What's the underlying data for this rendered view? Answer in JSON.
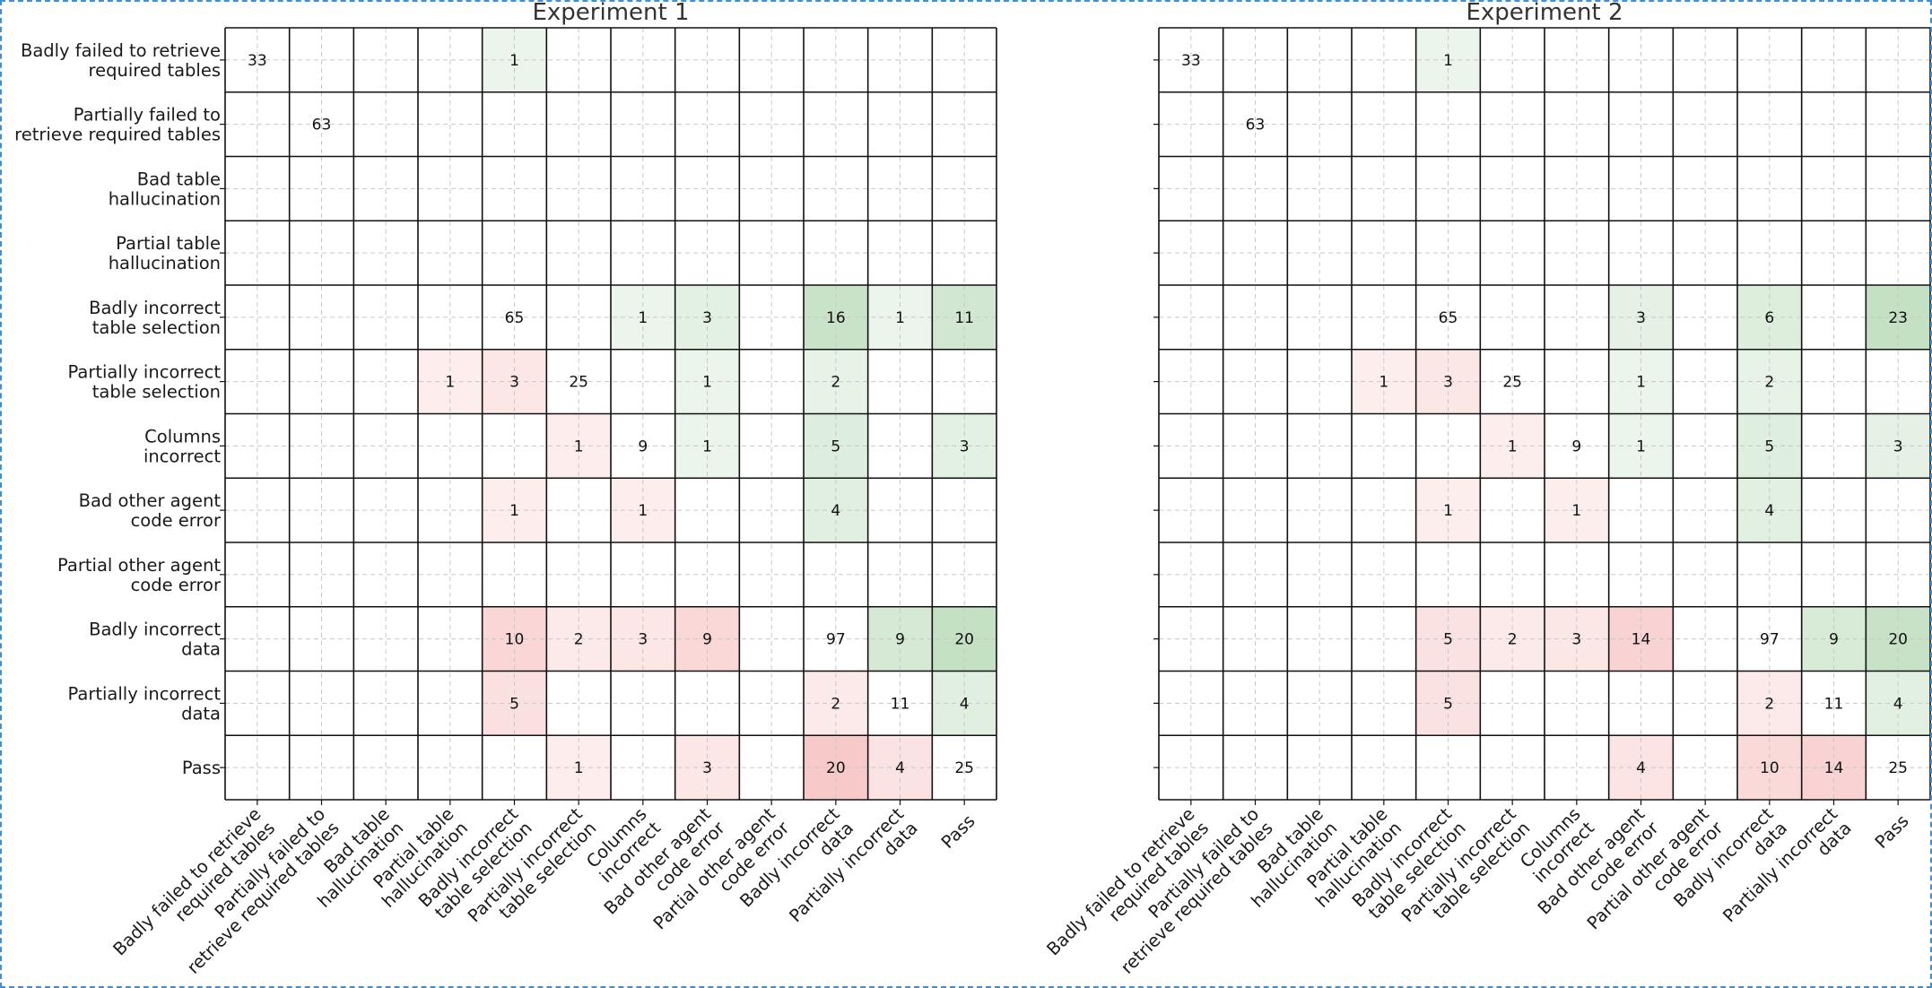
{
  "chart_data": [
    {
      "type": "heatmap",
      "title": "Experiment 1",
      "row_labels": [
        [
          "Badly failed to retrieve",
          "required tables"
        ],
        [
          "Partially failed to",
          "retrieve required tables"
        ],
        [
          "Bad table",
          "hallucination"
        ],
        [
          "Partial table",
          "hallucination"
        ],
        [
          "Badly incorrect",
          "table selection"
        ],
        [
          "Partially incorrect",
          "table selection"
        ],
        [
          "Columns",
          "incorrect"
        ],
        [
          "Bad other agent",
          "code error"
        ],
        [
          "Partial other agent",
          "code error"
        ],
        [
          "Badly incorrect",
          "data"
        ],
        [
          "Partially incorrect",
          "data"
        ],
        [
          "Pass"
        ]
      ],
      "col_labels": [
        [
          "Badly failed to retrieve",
          "required tables"
        ],
        [
          "Partially failed to",
          "retrieve required tables"
        ],
        [
          "Bad table",
          "hallucination"
        ],
        [
          "Partial table",
          "hallucination"
        ],
        [
          "Badly incorrect",
          "table selection"
        ],
        [
          "Partially incorrect",
          "table selection"
        ],
        [
          "Columns",
          "incorrect"
        ],
        [
          "Bad other agent",
          "code error"
        ],
        [
          "Partial other agent",
          "code error"
        ],
        [
          "Badly incorrect",
          "data"
        ],
        [
          "Partially incorrect",
          "data"
        ],
        [
          "Pass"
        ]
      ],
      "values": [
        [
          33,
          0,
          0,
          0,
          1,
          0,
          0,
          0,
          0,
          0,
          0,
          0
        ],
        [
          0,
          63,
          0,
          0,
          0,
          0,
          0,
          0,
          0,
          0,
          0,
          0
        ],
        [
          0,
          0,
          0,
          0,
          0,
          0,
          0,
          0,
          0,
          0,
          0,
          0
        ],
        [
          0,
          0,
          0,
          0,
          0,
          0,
          0,
          0,
          0,
          0,
          0,
          0
        ],
        [
          0,
          0,
          0,
          0,
          65,
          0,
          1,
          3,
          0,
          16,
          1,
          11
        ],
        [
          0,
          0,
          0,
          1,
          3,
          25,
          0,
          1,
          0,
          2,
          0,
          0
        ],
        [
          0,
          0,
          0,
          0,
          0,
          1,
          9,
          1,
          0,
          5,
          0,
          3
        ],
        [
          0,
          0,
          0,
          0,
          1,
          0,
          1,
          0,
          0,
          4,
          0,
          0
        ],
        [
          0,
          0,
          0,
          0,
          0,
          0,
          0,
          0,
          0,
          0,
          0,
          0
        ],
        [
          0,
          0,
          0,
          0,
          10,
          2,
          3,
          9,
          0,
          97,
          9,
          20
        ],
        [
          0,
          0,
          0,
          0,
          5,
          0,
          0,
          0,
          0,
          2,
          11,
          4
        ],
        [
          0,
          0,
          0,
          0,
          0,
          1,
          0,
          3,
          0,
          20,
          4,
          25
        ]
      ],
      "grid": true,
      "colors": {
        "above_diagonal": "#3a9a3a",
        "below_diagonal": "#e84a4a",
        "diagonal": "#ffffff"
      }
    },
    {
      "type": "heatmap",
      "title": "Experiment 2",
      "row_labels": [
        [
          "Badly failed to retrieve",
          "required tables"
        ],
        [
          "Partially failed to",
          "retrieve required tables"
        ],
        [
          "Bad table",
          "hallucination"
        ],
        [
          "Partial table",
          "hallucination"
        ],
        [
          "Badly incorrect",
          "table selection"
        ],
        [
          "Partially incorrect",
          "table selection"
        ],
        [
          "Columns",
          "incorrect"
        ],
        [
          "Bad other agent",
          "code error"
        ],
        [
          "Partial other agent",
          "code error"
        ],
        [
          "Badly incorrect",
          "data"
        ],
        [
          "Partially incorrect",
          "data"
        ],
        [
          "Pass"
        ]
      ],
      "col_labels": [
        [
          "Badly failed to retrieve",
          "required tables"
        ],
        [
          "Partially failed to",
          "retrieve required tables"
        ],
        [
          "Bad table",
          "hallucination"
        ],
        [
          "Partial table",
          "hallucination"
        ],
        [
          "Badly incorrect",
          "table selection"
        ],
        [
          "Partially incorrect",
          "table selection"
        ],
        [
          "Columns",
          "incorrect"
        ],
        [
          "Bad other agent",
          "code error"
        ],
        [
          "Partial other agent",
          "code error"
        ],
        [
          "Badly incorrect",
          "data"
        ],
        [
          "Partially incorrect",
          "data"
        ],
        [
          "Pass"
        ]
      ],
      "values": [
        [
          33,
          0,
          0,
          0,
          1,
          0,
          0,
          0,
          0,
          0,
          0,
          0
        ],
        [
          0,
          63,
          0,
          0,
          0,
          0,
          0,
          0,
          0,
          0,
          0,
          0
        ],
        [
          0,
          0,
          0,
          0,
          0,
          0,
          0,
          0,
          0,
          0,
          0,
          0
        ],
        [
          0,
          0,
          0,
          0,
          0,
          0,
          0,
          0,
          0,
          0,
          0,
          0
        ],
        [
          0,
          0,
          0,
          0,
          65,
          0,
          0,
          3,
          0,
          6,
          0,
          23
        ],
        [
          0,
          0,
          0,
          1,
          3,
          25,
          0,
          1,
          0,
          2,
          0,
          0
        ],
        [
          0,
          0,
          0,
          0,
          0,
          1,
          9,
          1,
          0,
          5,
          0,
          3
        ],
        [
          0,
          0,
          0,
          0,
          1,
          0,
          1,
          0,
          0,
          4,
          0,
          0
        ],
        [
          0,
          0,
          0,
          0,
          0,
          0,
          0,
          0,
          0,
          0,
          0,
          0
        ],
        [
          0,
          0,
          0,
          0,
          5,
          2,
          3,
          14,
          0,
          97,
          9,
          20
        ],
        [
          0,
          0,
          0,
          0,
          5,
          0,
          0,
          0,
          0,
          2,
          11,
          4
        ],
        [
          0,
          0,
          0,
          0,
          0,
          0,
          0,
          4,
          0,
          10,
          14,
          25
        ]
      ],
      "grid": true,
      "colors": {
        "above_diagonal": "#3a9a3a",
        "below_diagonal": "#e84a4a",
        "diagonal": "#ffffff"
      }
    }
  ]
}
